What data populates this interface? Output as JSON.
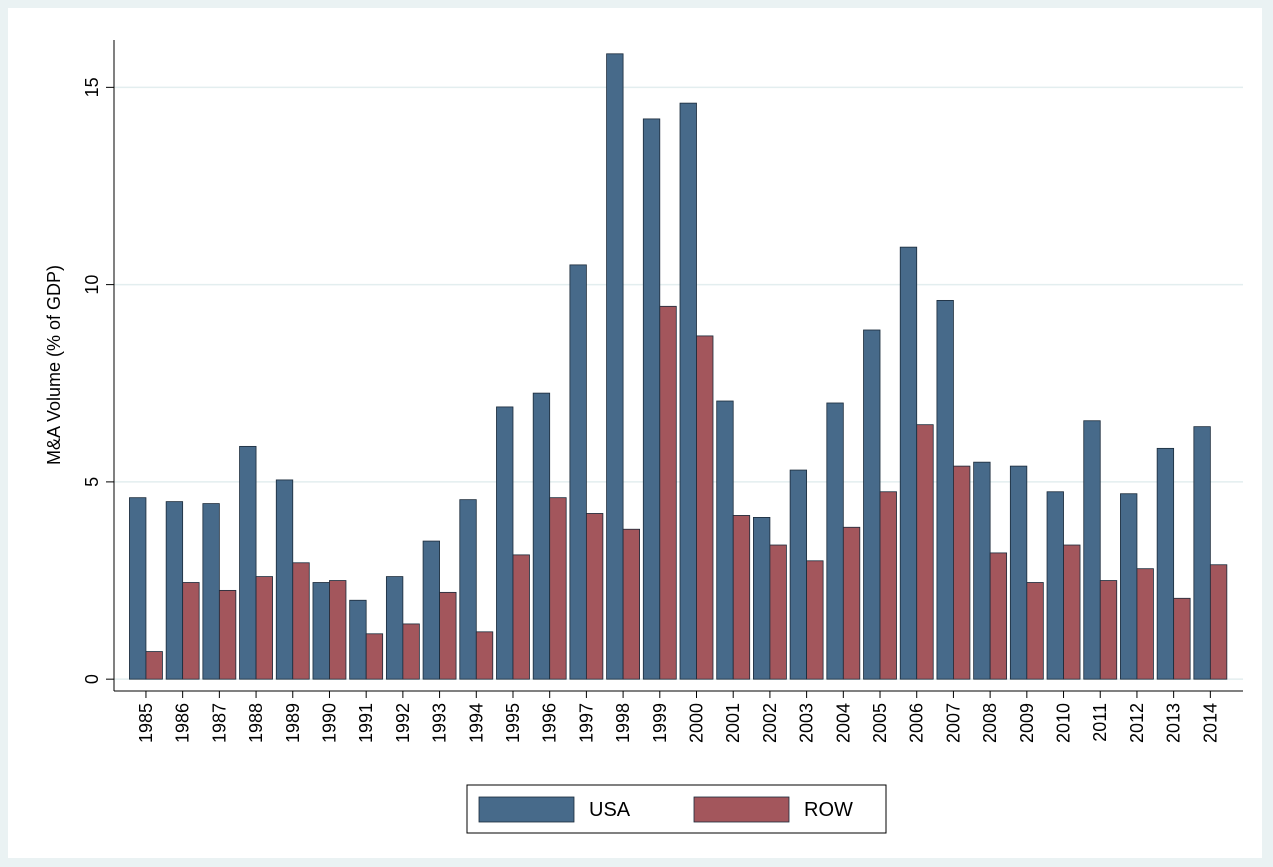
{
  "chart_data": {
    "type": "bar",
    "y_label": "M&A Volume (% of GDP)",
    "categories": [
      "1985",
      "1986",
      "1987",
      "1988",
      "1989",
      "1990",
      "1991",
      "1992",
      "1993",
      "1994",
      "1995",
      "1996",
      "1997",
      "1998",
      "1999",
      "2000",
      "2001",
      "2002",
      "2003",
      "2004",
      "2005",
      "2006",
      "2007",
      "2008",
      "2009",
      "2010",
      "2011",
      "2012",
      "2013",
      "2014"
    ],
    "series": [
      {
        "name": "USA",
        "color": "#476a8a",
        "values": [
          4.6,
          4.5,
          4.45,
          5.9,
          5.05,
          2.45,
          2.0,
          2.6,
          3.5,
          4.55,
          6.9,
          7.25,
          10.5,
          15.85,
          14.2,
          14.6,
          7.05,
          4.1,
          5.3,
          7.0,
          8.85,
          10.95,
          9.6,
          5.5,
          5.4,
          4.75,
          6.55,
          4.7,
          5.85,
          6.4
        ]
      },
      {
        "name": "ROW",
        "color": "#a3565c",
        "values": [
          0.7,
          2.45,
          2.25,
          2.6,
          2.95,
          2.5,
          1.15,
          1.4,
          2.2,
          1.2,
          3.15,
          4.6,
          4.2,
          3.8,
          9.45,
          8.7,
          4.15,
          3.4,
          3.0,
          3.85,
          4.75,
          6.45,
          5.4,
          3.2,
          2.45,
          3.4,
          2.5,
          2.8,
          2.05,
          2.9
        ]
      }
    ],
    "ylim": [
      -0.3,
      16.2
    ],
    "yticks": [
      0,
      5,
      10,
      15
    ],
    "grid": true
  }
}
